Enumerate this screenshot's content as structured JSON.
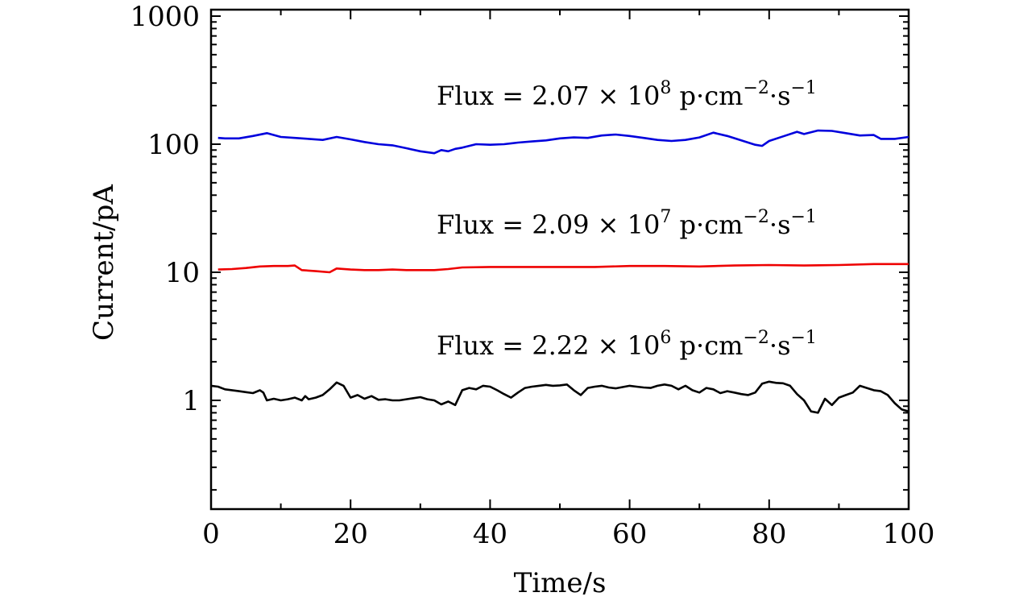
{
  "chart_data": {
    "type": "line",
    "title": "",
    "xlabel": "Time/s",
    "ylabel": "Current/pA",
    "xlim": [
      0,
      100
    ],
    "ylim": [
      0.15,
      1000
    ],
    "yscale": "log",
    "x_ticks": [
      0,
      20,
      40,
      60,
      80,
      100
    ],
    "x_tick_labels": [
      "0",
      "20",
      "40",
      "60",
      "80",
      "100"
    ],
    "y_ticks": [
      1,
      10,
      100,
      1000
    ],
    "y_tick_labels": [
      "1",
      "10",
      "100",
      "1000"
    ],
    "grid": false,
    "legend": "none",
    "series": [
      {
        "name": "Flux = 2.07×10^8 p·cm^-2·s^-1",
        "color": "#0000dd",
        "x": [
          1,
          2,
          4,
          6,
          8,
          10,
          12,
          14,
          16,
          18,
          20,
          22,
          24,
          26,
          28,
          30,
          32,
          33,
          34,
          35,
          36,
          38,
          40,
          42,
          44,
          46,
          48,
          50,
          52,
          54,
          56,
          58,
          60,
          62,
          64,
          66,
          68,
          70,
          72,
          74,
          76,
          78,
          79,
          80,
          82,
          84,
          85,
          87,
          89,
          91,
          93,
          95,
          96,
          98,
          100
        ],
        "values": [
          112,
          111,
          111,
          116,
          122,
          114,
          112,
          110,
          108,
          114,
          109,
          104,
          100,
          98,
          93,
          88,
          85,
          90,
          88,
          92,
          94,
          100,
          99,
          100,
          103,
          105,
          107,
          111,
          113,
          112,
          117,
          119,
          116,
          112,
          108,
          106,
          108,
          113,
          123,
          116,
          107,
          99,
          97,
          106,
          115,
          125,
          120,
          128,
          127,
          122,
          117,
          118,
          110,
          110,
          114
        ]
      },
      {
        "name": "Flux = 2.09×10^7 p·cm^-2·s^-1",
        "color": "#ee0000",
        "x": [
          1,
          3,
          5,
          7,
          9,
          11,
          12,
          13,
          15,
          17,
          18,
          20,
          22,
          24,
          26,
          28,
          30,
          32,
          34,
          36,
          40,
          45,
          50,
          55,
          60,
          65,
          70,
          75,
          80,
          85,
          90,
          95,
          100
        ],
        "values": [
          10.5,
          10.6,
          10.8,
          11.1,
          11.2,
          11.2,
          11.3,
          10.4,
          10.2,
          10.0,
          10.7,
          10.5,
          10.4,
          10.4,
          10.5,
          10.4,
          10.4,
          10.4,
          10.6,
          10.9,
          11.0,
          11.0,
          11.0,
          11.0,
          11.2,
          11.2,
          11.1,
          11.3,
          11.4,
          11.3,
          11.4,
          11.6,
          11.6
        ]
      },
      {
        "name": "Flux = 2.22×10^6 p·cm^-2·s^-1",
        "color": "#000000",
        "x": [
          0,
          1,
          2,
          3,
          4,
          5,
          6,
          7,
          7.5,
          8,
          9,
          10,
          11,
          12,
          13,
          13.5,
          14,
          15,
          16,
          17,
          18,
          19,
          20,
          21,
          22,
          23,
          24,
          25,
          26,
          27,
          28,
          29,
          30,
          31,
          32,
          33,
          34,
          35,
          36,
          37,
          38,
          39,
          40,
          41,
          42,
          43,
          44,
          45,
          46,
          47,
          48,
          49,
          50,
          51,
          52,
          53,
          54,
          55,
          56,
          57,
          58,
          59,
          60,
          61,
          62,
          63,
          64,
          65,
          66,
          67,
          68,
          69,
          70,
          71,
          72,
          73,
          74,
          75,
          76,
          77,
          78,
          79,
          80,
          81,
          82,
          83,
          84,
          85,
          86,
          87,
          88,
          89,
          90,
          91,
          92,
          93,
          94,
          95,
          96,
          97,
          98,
          99,
          100
        ],
        "values": [
          1.3,
          1.28,
          1.22,
          1.2,
          1.18,
          1.16,
          1.14,
          1.2,
          1.15,
          1.0,
          1.03,
          1.0,
          1.02,
          1.05,
          1.0,
          1.08,
          1.02,
          1.05,
          1.1,
          1.22,
          1.38,
          1.3,
          1.05,
          1.1,
          1.03,
          1.08,
          1.01,
          1.02,
          1.0,
          1.0,
          1.02,
          1.04,
          1.06,
          1.02,
          1.0,
          0.93,
          0.98,
          0.92,
          1.2,
          1.25,
          1.22,
          1.3,
          1.28,
          1.2,
          1.12,
          1.05,
          1.15,
          1.25,
          1.28,
          1.3,
          1.32,
          1.3,
          1.31,
          1.33,
          1.2,
          1.1,
          1.25,
          1.28,
          1.3,
          1.26,
          1.24,
          1.27,
          1.3,
          1.28,
          1.26,
          1.25,
          1.3,
          1.33,
          1.3,
          1.22,
          1.3,
          1.2,
          1.15,
          1.25,
          1.22,
          1.14,
          1.18,
          1.15,
          1.12,
          1.1,
          1.15,
          1.35,
          1.4,
          1.37,
          1.36,
          1.3,
          1.12,
          1.0,
          0.82,
          0.8,
          1.03,
          0.92,
          1.05,
          1.1,
          1.15,
          1.3,
          1.25,
          1.2,
          1.18,
          1.1,
          0.95,
          0.85,
          0.82
        ]
      }
    ],
    "annotations": [
      {
        "prefix": "Flux = 2.07",
        "times": "×",
        "base": "10",
        "exp": "8",
        "unit1": " p·cm",
        "exp2": "−2",
        "unit2": "·s",
        "exp3": "−1"
      },
      {
        "prefix": "Flux = 2.09",
        "times": "×",
        "base": "10",
        "exp": "7",
        "unit1": " p·cm",
        "exp2": "−2",
        "unit2": "·s",
        "exp3": "−1"
      },
      {
        "prefix": "Flux = 2.22",
        "times": "×",
        "base": "10",
        "exp": "6",
        "unit1": " p·cm",
        "exp2": "−2",
        "unit2": "·s",
        "exp3": "−1"
      }
    ]
  }
}
